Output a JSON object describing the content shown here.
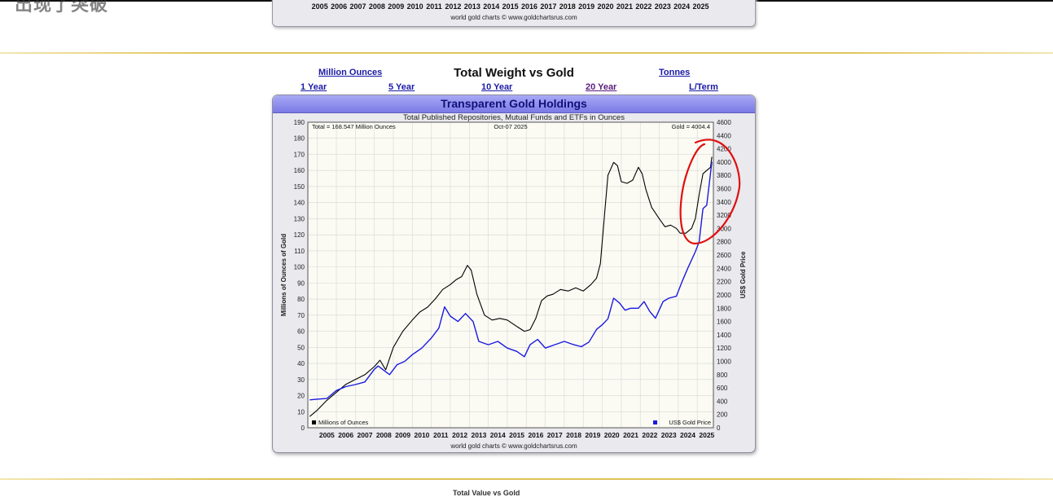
{
  "previous_chart": {
    "heading_fragment": "出现了突破",
    "years": [
      "2005",
      "2006",
      "2007",
      "2008",
      "2009",
      "2010",
      "2011",
      "2012",
      "2013",
      "2014",
      "2015",
      "2016",
      "2017",
      "2018",
      "2019",
      "2020",
      "2021",
      "2022",
      "2023",
      "2024",
      "2025"
    ],
    "credit": "world gold charts © www.goldchartsrus.com"
  },
  "nav": {
    "unit_left": "Million Ounces",
    "title": "Total Weight vs Gold",
    "unit_right": "Tonnes",
    "periods": [
      "1 Year",
      "5 Year",
      "10 Year",
      "20 Year",
      "L/Term"
    ]
  },
  "bottom_peek": "Total Value vs Gold",
  "colors": {
    "header": "#8484ea",
    "weight_line": "#000000",
    "gold_line": "#1a1ae0",
    "annotation": "#e01010"
  },
  "chart_data": {
    "type": "line",
    "title": "Transparent Gold Holdings",
    "subtitle": "Total Published Repositories, Mutual Funds and ETFs in Ounces",
    "annotation_left": "Total = 168.547 Million Ounces",
    "annotation_center": "Oct-07  2025",
    "annotation_right": "Gold = 4004.4",
    "ylabel": "Millions of Ounces of Gold",
    "y2label": "US$ Gold Price",
    "credit": "world gold charts © www.goldchartsrus.com",
    "ylim": [
      0,
      190
    ],
    "y2lim": [
      0,
      4600
    ],
    "yticks": [
      0,
      10,
      20,
      30,
      40,
      50,
      60,
      70,
      80,
      90,
      100,
      110,
      120,
      130,
      140,
      150,
      160,
      170,
      180,
      190
    ],
    "y2ticks": [
      0,
      200,
      400,
      600,
      800,
      1000,
      1200,
      1400,
      1600,
      1800,
      2000,
      2200,
      2400,
      2600,
      2800,
      3000,
      3200,
      3400,
      3600,
      3800,
      4000,
      4200,
      4400,
      4600
    ],
    "x_years": [
      "2005",
      "2006",
      "2007",
      "2008",
      "2009",
      "2010",
      "2011",
      "2012",
      "2013",
      "2014",
      "2015",
      "2016",
      "2017",
      "2018",
      "2019",
      "2020",
      "2021",
      "2022",
      "2023",
      "2024",
      "2025"
    ],
    "xlim": [
      2004.5,
      2025.85
    ],
    "grid": true,
    "legend": [
      {
        "name": "Millions of Ounces",
        "placement": "bottom-left"
      },
      {
        "name": "US$ Gold Price",
        "placement": "bottom-right"
      }
    ],
    "series": [
      {
        "name": "Millions of Ounces",
        "axis": "left",
        "x": [
          2004.6,
          2005.0,
          2005.5,
          2006.0,
          2006.5,
          2007.0,
          2007.5,
          2008.0,
          2008.3,
          2008.6,
          2009.0,
          2009.5,
          2010.0,
          2010.4,
          2010.8,
          2011.2,
          2011.6,
          2012.0,
          2012.3,
          2012.6,
          2012.9,
          2013.1,
          2013.4,
          2013.8,
          2014.2,
          2014.6,
          2015.0,
          2015.5,
          2015.9,
          2016.2,
          2016.5,
          2016.8,
          2017.1,
          2017.4,
          2017.8,
          2018.2,
          2018.6,
          2019.0,
          2019.4,
          2019.7,
          2019.9,
          2020.1,
          2020.3,
          2020.6,
          2020.8,
          2021.0,
          2021.3,
          2021.6,
          2021.9,
          2022.1,
          2022.3,
          2022.6,
          2023.0,
          2023.3,
          2023.6,
          2023.9,
          2024.1,
          2024.4,
          2024.7,
          2024.9,
          2025.1,
          2025.3,
          2025.5,
          2025.7,
          2025.77
        ],
        "y": [
          7,
          11,
          17,
          22,
          27,
          30,
          33,
          38,
          42,
          36,
          50,
          60,
          67,
          72,
          75,
          80,
          86,
          89,
          92,
          94,
          101,
          98,
          83,
          70,
          67,
          68,
          67,
          63,
          60,
          61,
          68,
          79,
          82,
          83,
          86,
          85,
          87,
          85,
          89,
          93,
          102,
          130,
          157,
          165,
          163,
          153,
          152,
          154,
          162,
          158,
          148,
          137,
          130,
          125,
          126,
          124,
          121,
          121,
          124,
          130,
          145,
          158,
          160,
          162,
          168.5
        ]
      },
      {
        "name": "US$ Gold Price",
        "axis": "right",
        "x": [
          2004.6,
          2005.0,
          2005.5,
          2006.0,
          2006.5,
          2007.0,
          2007.5,
          2008.0,
          2008.2,
          2008.8,
          2009.2,
          2009.6,
          2010.0,
          2010.5,
          2011.0,
          2011.4,
          2011.7,
          2012.0,
          2012.4,
          2012.8,
          2013.2,
          2013.5,
          2014.0,
          2014.5,
          2015.0,
          2015.5,
          2015.9,
          2016.2,
          2016.6,
          2017.0,
          2017.5,
          2018.0,
          2018.5,
          2018.9,
          2019.3,
          2019.7,
          2020.0,
          2020.3,
          2020.6,
          2020.9,
          2021.2,
          2021.5,
          2021.9,
          2022.2,
          2022.5,
          2022.8,
          2023.2,
          2023.5,
          2023.9,
          2024.2,
          2024.5,
          2024.9,
          2025.1,
          2025.3,
          2025.5,
          2025.77
        ],
        "y": [
          420,
          430,
          440,
          560,
          620,
          650,
          690,
          880,
          930,
          800,
          950,
          1000,
          1100,
          1200,
          1350,
          1500,
          1820,
          1680,
          1600,
          1720,
          1600,
          1300,
          1250,
          1300,
          1200,
          1150,
          1070,
          1250,
          1330,
          1200,
          1250,
          1300,
          1250,
          1220,
          1290,
          1480,
          1550,
          1640,
          1950,
          1880,
          1770,
          1800,
          1800,
          1900,
          1750,
          1650,
          1900,
          1950,
          1980,
          2200,
          2400,
          2650,
          2800,
          3300,
          3350,
          4004.4
        ]
      }
    ]
  }
}
